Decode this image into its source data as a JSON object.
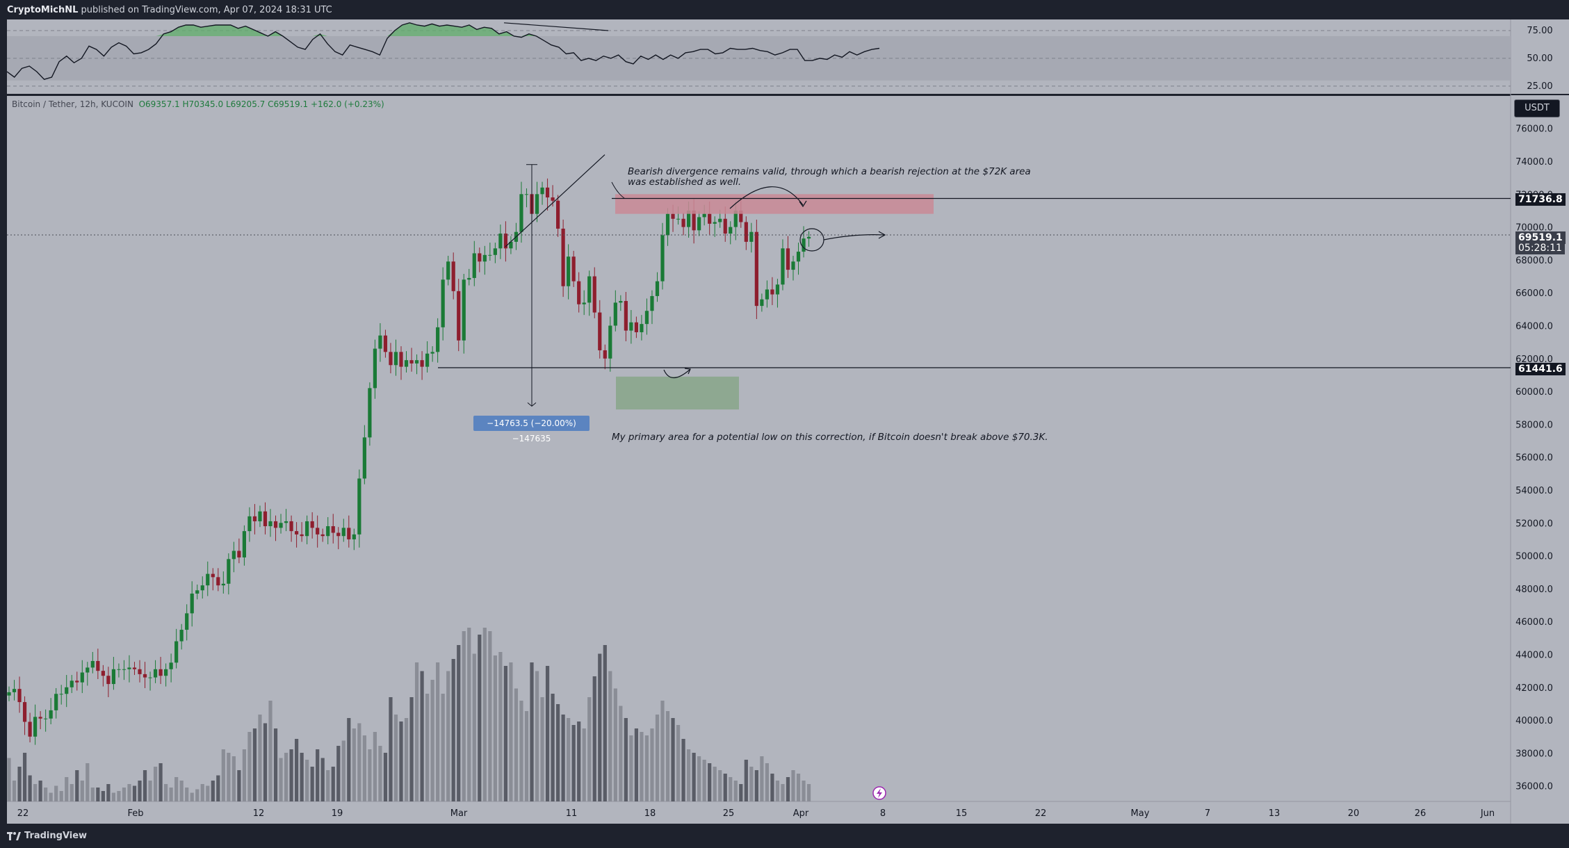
{
  "header": {
    "author": "CryptoMichNL",
    "published_text": "published on TradingView.com, Apr 07, 2024 18:31 UTC"
  },
  "footer": {
    "brand": "TradingView"
  },
  "legend": {
    "pair": "Bitcoin / Tether, 12h, KUCOIN",
    "open": "O69357.1",
    "high": "H70345.0",
    "low": "L69205.7",
    "close": "C69519.1",
    "change": "+162.0 (+0.23%)"
  },
  "currency_label": "USDT",
  "price_tags": {
    "resistance": "71736.8",
    "current": "69519.1",
    "countdown": "05:28:11",
    "support": "61441.6"
  },
  "annotations": {
    "bearish_line1": "Bearish divergence remains valid, through which a bearish rejection at the $72K area",
    "bearish_line2": "was established as well.",
    "primary_area": "My primary area for a potential low on this correction, if Bitcoin doesn't break above $70.3K.",
    "measure": "−14763.5 (−20.00%) −147635"
  },
  "colors": {
    "up": "#1a7a36",
    "down": "#8e1e2e",
    "resistance_zone": "#c98a96",
    "support_zone": "#8aa68c",
    "background": "#b2b5be"
  },
  "chart_data": [
    {
      "type": "line",
      "name": "RSI",
      "y_ticks": [
        "75.00",
        "50.00",
        "25.00"
      ],
      "ylim": [
        18,
        85
      ],
      "values": [
        38,
        33,
        41,
        43,
        38,
        31,
        33,
        47,
        52,
        46,
        50,
        61,
        58,
        52,
        60,
        64,
        61,
        54,
        55,
        58,
        63,
        72,
        74,
        78,
        80,
        80,
        78,
        79,
        80,
        80,
        80,
        77,
        79,
        76,
        73,
        70,
        74,
        70,
        65,
        60,
        58,
        67,
        72,
        63,
        56,
        53,
        62,
        60,
        58,
        56,
        53,
        68,
        75,
        80,
        82,
        80,
        79,
        81,
        79,
        80,
        79,
        78,
        80,
        76,
        78,
        77,
        72,
        74,
        70,
        69,
        72,
        70,
        66,
        62,
        60,
        54,
        55,
        48,
        50,
        48,
        52,
        50,
        53,
        47,
        45,
        52,
        49,
        53,
        49,
        53,
        50,
        55,
        56,
        58,
        58,
        54,
        55,
        59,
        58,
        58,
        59,
        57,
        56,
        53,
        55,
        58,
        58,
        48,
        48,
        50,
        49,
        53,
        51,
        56,
        53,
        56,
        58,
        59
      ]
    },
    {
      "type": "candlestick",
      "title": "Bitcoin / Tether, 12h, KUCOIN",
      "y_ticks": [
        "76000.0",
        "74000.0",
        "72000.0",
        "70000.0",
        "68000.0",
        "66000.0",
        "64000.0",
        "62000.0",
        "60000.0",
        "58000.0",
        "56000.0",
        "54000.0",
        "52000.0",
        "50000.0",
        "48000.0",
        "46000.0",
        "44000.0",
        "42000.0",
        "40000.0",
        "38000.0",
        "36000.0"
      ],
      "ylim": [
        35000,
        77500
      ],
      "x_ticks": [
        "22",
        "Feb",
        "12",
        "19",
        "Mar",
        "11",
        "18",
        "25",
        "Apr",
        "8",
        "15",
        "22",
        "May",
        "7",
        "13",
        "20",
        "26",
        "Jun"
      ],
      "close": [
        41700,
        41900,
        41100,
        39900,
        39000,
        40200,
        40100,
        40100,
        40600,
        41600,
        41600,
        42000,
        42400,
        42300,
        42900,
        43200,
        43600,
        43000,
        42700,
        42200,
        43100,
        43100,
        43100,
        43200,
        43100,
        42800,
        42600,
        42600,
        43100,
        42700,
        43100,
        43500,
        44800,
        45500,
        46500,
        47700,
        47900,
        48200,
        48900,
        48700,
        48200,
        48300,
        49800,
        50300,
        49900,
        51500,
        52400,
        52100,
        52700,
        51800,
        52100,
        51700,
        52000,
        52100,
        51500,
        51300,
        51200,
        52100,
        51700,
        51300,
        51200,
        51800,
        51400,
        51200,
        51700,
        51000,
        51300,
        54700,
        57200,
        60200,
        62600,
        63400,
        62400,
        61600,
        62400,
        61500,
        61900,
        61700,
        61900,
        61500,
        62300,
        62400,
        63900,
        66800,
        67900,
        66100,
        63100,
        66800,
        66900,
        68400,
        67900,
        68300,
        68300,
        68700,
        69600,
        68700,
        69100,
        69700,
        72000,
        72000,
        70800,
        72000,
        72400,
        71800,
        71600,
        69900,
        66400,
        68200,
        66700,
        65300,
        65400,
        67000,
        64800,
        62500,
        62000,
        64000,
        65400,
        65500,
        63700,
        64200,
        63600,
        64100,
        64900,
        65800,
        66700,
        69500,
        70800,
        70500,
        70500,
        70000,
        71000,
        69800,
        70600,
        70800,
        70200,
        70300,
        70500,
        69600,
        70000,
        71000,
        70300,
        69100,
        69700,
        65200,
        65600,
        66200,
        65900,
        66500,
        68700,
        67400,
        67900,
        68500,
        69300,
        69400
      ]
    },
    {
      "type": "bar",
      "name": "Volume",
      "values": [
        25,
        12,
        20,
        28,
        15,
        10,
        12,
        8,
        5,
        9,
        6,
        14,
        10,
        18,
        12,
        22,
        8,
        8,
        6,
        10,
        5,
        6,
        8,
        10,
        9,
        12,
        18,
        12,
        20,
        22,
        10,
        8,
        14,
        12,
        8,
        5,
        7,
        10,
        9,
        12,
        15,
        30,
        28,
        26,
        18,
        30,
        40,
        42,
        50,
        45,
        58,
        42,
        25,
        28,
        30,
        36,
        28,
        24,
        20,
        30,
        25,
        18,
        20,
        32,
        35,
        48,
        42,
        45,
        38,
        30,
        40,
        32,
        28,
        60,
        50,
        46,
        48,
        60,
        80,
        75,
        62,
        70,
        80,
        62,
        75,
        82,
        90,
        98,
        100,
        85,
        96,
        100,
        98,
        84,
        86,
        78,
        80,
        65,
        58,
        52,
        80,
        75,
        60,
        78,
        62,
        56,
        50,
        48,
        44,
        46,
        42,
        60,
        72,
        85,
        90,
        75,
        65,
        55,
        48,
        38,
        42,
        40,
        38,
        42,
        50,
        58,
        52,
        48,
        44,
        36,
        30,
        28,
        26,
        24,
        22,
        20,
        18,
        16,
        14,
        12,
        10,
        24,
        20,
        18,
        26,
        22,
        16,
        12,
        10,
        14,
        18,
        16,
        12,
        10,
        8
      ]
    }
  ]
}
